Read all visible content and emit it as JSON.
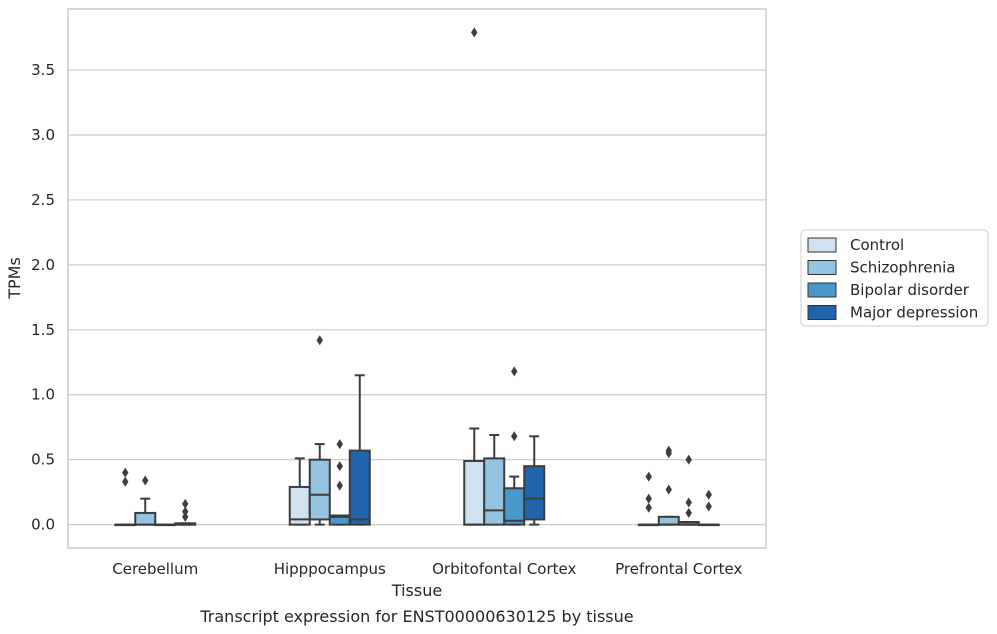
{
  "chart_data": {
    "type": "box",
    "xlabel": "Tissue",
    "ylabel": "TPMs",
    "caption": "Transcript expression for ENST00000630125 by tissue",
    "ylim": [
      -0.18,
      3.97
    ],
    "yticks": [
      0.0,
      0.5,
      1.0,
      1.5,
      2.0,
      2.5,
      3.0,
      3.5
    ],
    "ytick_labels": [
      "0.0",
      "0.5",
      "1.0",
      "1.5",
      "2.0",
      "2.5",
      "3.0",
      "3.5"
    ],
    "grid": "horizontal",
    "legend_position": "right",
    "categories": [
      "Cerebellum",
      "Hipppocampus",
      "Orbitofontal Cortex",
      "Prefrontal Cortex"
    ],
    "series": [
      {
        "name": "Control",
        "color": "#d0e1f2",
        "boxes": [
          {
            "whisker_low": 0.0,
            "q1": 0.0,
            "median": 0.0,
            "q3": 0.0,
            "whisker_high": 0.0,
            "outliers": [
              0.33,
              0.4
            ]
          },
          {
            "whisker_low": 0.0,
            "q1": 0.0,
            "median": 0.04,
            "q3": 0.29,
            "whisker_high": 0.51,
            "outliers": []
          },
          {
            "whisker_low": 0.0,
            "q1": 0.0,
            "median": 0.0,
            "q3": 0.49,
            "whisker_high": 0.74,
            "outliers": [
              3.79
            ]
          },
          {
            "whisker_low": 0.0,
            "q1": 0.0,
            "median": 0.0,
            "q3": 0.0,
            "whisker_high": 0.0,
            "outliers": [
              0.13,
              0.2,
              0.37
            ]
          }
        ]
      },
      {
        "name": "Schizophrenia",
        "color": "#94c4df",
        "boxes": [
          {
            "whisker_low": 0.0,
            "q1": 0.0,
            "median": 0.0,
            "q3": 0.09,
            "whisker_high": 0.2,
            "outliers": [
              0.34
            ]
          },
          {
            "whisker_low": 0.0,
            "q1": 0.04,
            "median": 0.23,
            "q3": 0.5,
            "whisker_high": 0.62,
            "outliers": [
              1.42
            ]
          },
          {
            "whisker_low": 0.0,
            "q1": 0.0,
            "median": 0.11,
            "q3": 0.51,
            "whisker_high": 0.69,
            "outliers": []
          },
          {
            "whisker_low": 0.0,
            "q1": 0.0,
            "median": 0.0,
            "q3": 0.06,
            "whisker_high": 0.06,
            "outliers": [
              0.27,
              0.55,
              0.57
            ]
          }
        ]
      },
      {
        "name": "Bipolar disorder",
        "color": "#4a98c9",
        "boxes": [
          {
            "whisker_low": 0.0,
            "q1": 0.0,
            "median": 0.0,
            "q3": 0.0,
            "whisker_high": 0.0,
            "outliers": []
          },
          {
            "whisker_low": 0.0,
            "q1": 0.0,
            "median": 0.06,
            "q3": 0.07,
            "whisker_high": 0.07,
            "outliers": [
              0.3,
              0.45,
              0.62
            ]
          },
          {
            "whisker_low": 0.0,
            "q1": 0.0,
            "median": 0.03,
            "q3": 0.28,
            "whisker_high": 0.37,
            "outliers": [
              0.68,
              1.18
            ]
          },
          {
            "whisker_low": 0.0,
            "q1": 0.0,
            "median": 0.0,
            "q3": 0.02,
            "whisker_high": 0.02,
            "outliers": [
              0.09,
              0.17,
              0.5
            ]
          }
        ]
      },
      {
        "name": "Major depression",
        "color": "#2164ab",
        "boxes": [
          {
            "whisker_low": 0.0,
            "q1": 0.0,
            "median": 0.0,
            "q3": 0.01,
            "whisker_high": 0.01,
            "outliers": [
              0.06,
              0.1,
              0.16
            ]
          },
          {
            "whisker_low": 0.0,
            "q1": 0.0,
            "median": 0.04,
            "q3": 0.57,
            "whisker_high": 1.15,
            "outliers": []
          },
          {
            "whisker_low": 0.0,
            "q1": 0.04,
            "median": 0.2,
            "q3": 0.45,
            "whisker_high": 0.68,
            "outliers": []
          },
          {
            "whisker_low": 0.0,
            "q1": 0.0,
            "median": 0.0,
            "q3": 0.0,
            "whisker_high": 0.0,
            "outliers": [
              0.14,
              0.23
            ]
          }
        ]
      }
    ]
  }
}
